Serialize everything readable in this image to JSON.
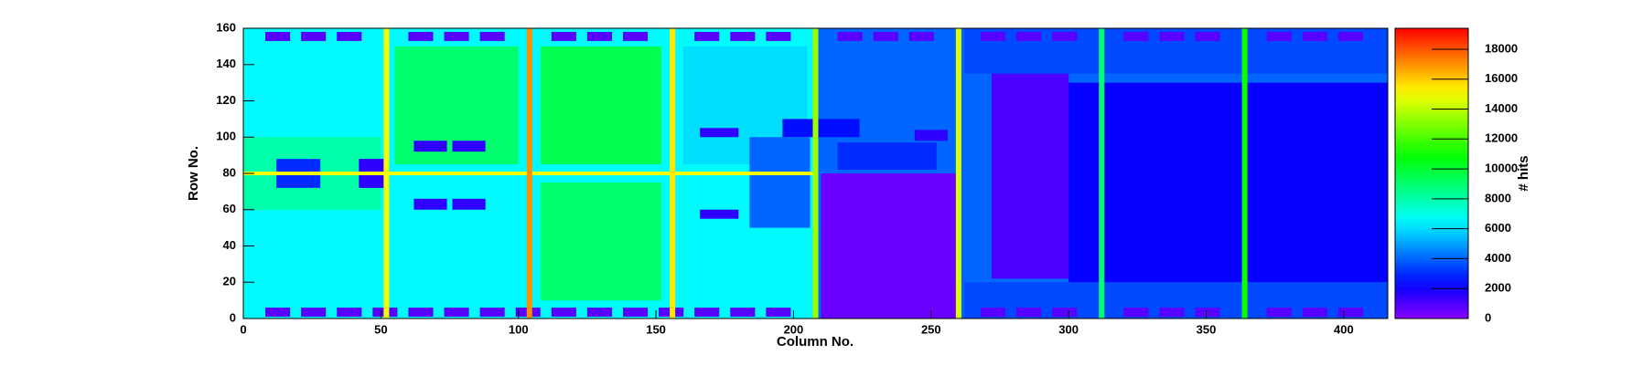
{
  "chart_data": {
    "type": "heatmap",
    "x_label": "Column No.",
    "y_label": "Row No.",
    "z_label": "# hits",
    "xlim": [
      0,
      416
    ],
    "xticks": [
      0,
      50,
      100,
      150,
      200,
      250,
      300,
      350,
      400
    ],
    "ylim": [
      0,
      160
    ],
    "yticks": [
      0,
      20,
      40,
      60,
      80,
      100,
      120,
      140,
      160
    ],
    "zlim": [
      0,
      19400
    ],
    "zticks": [
      0,
      2000,
      4000,
      6000,
      8000,
      10000,
      12000,
      14000,
      16000,
      18000
    ],
    "cells": [
      {
        "x": [
          0,
          208
        ],
        "y": [
          0,
          160
        ],
        "value": 6500
      },
      {
        "x": [
          208,
          416
        ],
        "y": [
          0,
          160
        ],
        "value": 4000
      },
      {
        "x": [
          55,
          100
        ],
        "y": [
          85,
          150
        ],
        "value": 9000
      },
      {
        "x": [
          108,
          152
        ],
        "y": [
          85,
          150
        ],
        "value": 9500
      },
      {
        "x": [
          108,
          152
        ],
        "y": [
          10,
          75
        ],
        "value": 9000
      },
      {
        "x": [
          0,
          50
        ],
        "y": [
          60,
          100
        ],
        "value": 8000
      },
      {
        "x": [
          160,
          205
        ],
        "y": [
          85,
          150
        ],
        "value": 6000
      },
      {
        "x": [
          210,
          260
        ],
        "y": [
          0,
          80
        ],
        "value": 500
      },
      {
        "x": [
          272,
          300
        ],
        "y": [
          22,
          137
        ],
        "value": 1000
      },
      {
        "x": [
          300,
          416
        ],
        "y": [
          20,
          130
        ],
        "value": 2200
      },
      {
        "x": [
          262,
          416
        ],
        "y": [
          135,
          160
        ],
        "value": 3500
      },
      {
        "x": [
          262,
          416
        ],
        "y": [
          0,
          20
        ],
        "value": 3500
      },
      {
        "x": [
          12,
          28
        ],
        "y": [
          72,
          88
        ],
        "value": 3000
      },
      {
        "x": [
          42,
          52
        ],
        "y": [
          72,
          88
        ],
        "value": 1500
      },
      {
        "x": [
          62,
          74
        ],
        "y": [
          60,
          66
        ],
        "value": 1500
      },
      {
        "x": [
          76,
          88
        ],
        "y": [
          60,
          66
        ],
        "value": 1500
      },
      {
        "x": [
          62,
          74
        ],
        "y": [
          92,
          98
        ],
        "value": 1500
      },
      {
        "x": [
          76,
          88
        ],
        "y": [
          92,
          98
        ],
        "value": 1500
      },
      {
        "x": [
          166,
          180
        ],
        "y": [
          100,
          105
        ],
        "value": 1500
      },
      {
        "x": [
          166,
          180
        ],
        "y": [
          55,
          60
        ],
        "value": 1500
      },
      {
        "x": [
          216,
          252
        ],
        "y": [
          82,
          97
        ],
        "value": 3000
      },
      {
        "x": [
          196,
          224
        ],
        "y": [
          100,
          110
        ],
        "value": 2500
      },
      {
        "x": [
          184,
          206
        ],
        "y": [
          50,
          100
        ],
        "value": 4000
      },
      {
        "x": [
          244,
          256
        ],
        "y": [
          98,
          104
        ],
        "value": 1500
      },
      {
        "x": [
          8,
          17
        ],
        "y": [
          1,
          6
        ],
        "value": 800
      },
      {
        "x": [
          21,
          30
        ],
        "y": [
          1,
          6
        ],
        "value": 800
      },
      {
        "x": [
          34,
          43
        ],
        "y": [
          1,
          6
        ],
        "value": 800
      },
      {
        "x": [
          47,
          56
        ],
        "y": [
          1,
          6
        ],
        "value": 800
      },
      {
        "x": [
          60,
          69
        ],
        "y": [
          1,
          6
        ],
        "value": 800
      },
      {
        "x": [
          73,
          82
        ],
        "y": [
          1,
          6
        ],
        "value": 800
      },
      {
        "x": [
          86,
          95
        ],
        "y": [
          1,
          6
        ],
        "value": 800
      },
      {
        "x": [
          99,
          108
        ],
        "y": [
          1,
          6
        ],
        "value": 800
      },
      {
        "x": [
          112,
          121
        ],
        "y": [
          1,
          6
        ],
        "value": 800
      },
      {
        "x": [
          125,
          134
        ],
        "y": [
          1,
          6
        ],
        "value": 800
      },
      {
        "x": [
          138,
          147
        ],
        "y": [
          1,
          6
        ],
        "value": 800
      },
      {
        "x": [
          151,
          160
        ],
        "y": [
          1,
          6
        ],
        "value": 800
      },
      {
        "x": [
          164,
          173
        ],
        "y": [
          1,
          6
        ],
        "value": 800
      },
      {
        "x": [
          177,
          186
        ],
        "y": [
          1,
          6
        ],
        "value": 800
      },
      {
        "x": [
          190,
          199
        ],
        "y": [
          1,
          6
        ],
        "value": 800
      },
      {
        "x": [
          268,
          277
        ],
        "y": [
          1,
          6
        ],
        "value": 800
      },
      {
        "x": [
          281,
          290
        ],
        "y": [
          1,
          6
        ],
        "value": 800
      },
      {
        "x": [
          294,
          303
        ],
        "y": [
          1,
          6
        ],
        "value": 800
      },
      {
        "x": [
          320,
          329
        ],
        "y": [
          1,
          6
        ],
        "value": 800
      },
      {
        "x": [
          333,
          342
        ],
        "y": [
          1,
          6
        ],
        "value": 800
      },
      {
        "x": [
          346,
          355
        ],
        "y": [
          1,
          6
        ],
        "value": 800
      },
      {
        "x": [
          372,
          381
        ],
        "y": [
          1,
          6
        ],
        "value": 800
      },
      {
        "x": [
          385,
          394
        ],
        "y": [
          1,
          6
        ],
        "value": 800
      },
      {
        "x": [
          398,
          407
        ],
        "y": [
          1,
          6
        ],
        "value": 800
      },
      {
        "x": [
          8,
          17
        ],
        "y": [
          153,
          158
        ],
        "value": 800
      },
      {
        "x": [
          21,
          30
        ],
        "y": [
          153,
          158
        ],
        "value": 800
      },
      {
        "x": [
          34,
          43
        ],
        "y": [
          153,
          158
        ],
        "value": 800
      },
      {
        "x": [
          60,
          69
        ],
        "y": [
          153,
          158
        ],
        "value": 800
      },
      {
        "x": [
          73,
          82
        ],
        "y": [
          153,
          158
        ],
        "value": 800
      },
      {
        "x": [
          86,
          95
        ],
        "y": [
          153,
          158
        ],
        "value": 800
      },
      {
        "x": [
          112,
          121
        ],
        "y": [
          153,
          158
        ],
        "value": 800
      },
      {
        "x": [
          125,
          134
        ],
        "y": [
          153,
          158
        ],
        "value": 800
      },
      {
        "x": [
          138,
          147
        ],
        "y": [
          153,
          158
        ],
        "value": 800
      },
      {
        "x": [
          164,
          173
        ],
        "y": [
          153,
          158
        ],
        "value": 800
      },
      {
        "x": [
          177,
          186
        ],
        "y": [
          153,
          158
        ],
        "value": 800
      },
      {
        "x": [
          190,
          199
        ],
        "y": [
          153,
          158
        ],
        "value": 800
      },
      {
        "x": [
          216,
          225
        ],
        "y": [
          153,
          158
        ],
        "value": 800
      },
      {
        "x": [
          229,
          238
        ],
        "y": [
          153,
          158
        ],
        "value": 800
      },
      {
        "x": [
          242,
          251
        ],
        "y": [
          153,
          158
        ],
        "value": 800
      },
      {
        "x": [
          268,
          277
        ],
        "y": [
          153,
          158
        ],
        "value": 800
      },
      {
        "x": [
          281,
          290
        ],
        "y": [
          153,
          158
        ],
        "value": 800
      },
      {
        "x": [
          294,
          303
        ],
        "y": [
          153,
          158
        ],
        "value": 800
      },
      {
        "x": [
          320,
          329
        ],
        "y": [
          153,
          158
        ],
        "value": 800
      },
      {
        "x": [
          333,
          342
        ],
        "y": [
          153,
          158
        ],
        "value": 800
      },
      {
        "x": [
          346,
          355
        ],
        "y": [
          153,
          158
        ],
        "value": 800
      },
      {
        "x": [
          372,
          381
        ],
        "y": [
          153,
          158
        ],
        "value": 800
      },
      {
        "x": [
          385,
          394
        ],
        "y": [
          153,
          158
        ],
        "value": 800
      },
      {
        "x": [
          398,
          407
        ],
        "y": [
          153,
          158
        ],
        "value": 800
      },
      {
        "x": [
          0,
          208
        ],
        "y": [
          79,
          81
        ],
        "value": 15000
      },
      {
        "x": [
          51,
          53
        ],
        "y": [
          0,
          160
        ],
        "value": 15000
      },
      {
        "x": [
          103,
          105
        ],
        "y": [
          0,
          160
        ],
        "value": 17000
      },
      {
        "x": [
          155,
          157
        ],
        "y": [
          0,
          160
        ],
        "value": 15500
      },
      {
        "x": [
          207,
          209
        ],
        "y": [
          0,
          160
        ],
        "value": 13500
      },
      {
        "x": [
          259,
          261
        ],
        "y": [
          0,
          160
        ],
        "value": 14500
      },
      {
        "x": [
          311,
          313
        ],
        "y": [
          0,
          160
        ],
        "value": 9000
      },
      {
        "x": [
          363,
          365
        ],
        "y": [
          0,
          160
        ],
        "value": 11000
      }
    ]
  }
}
